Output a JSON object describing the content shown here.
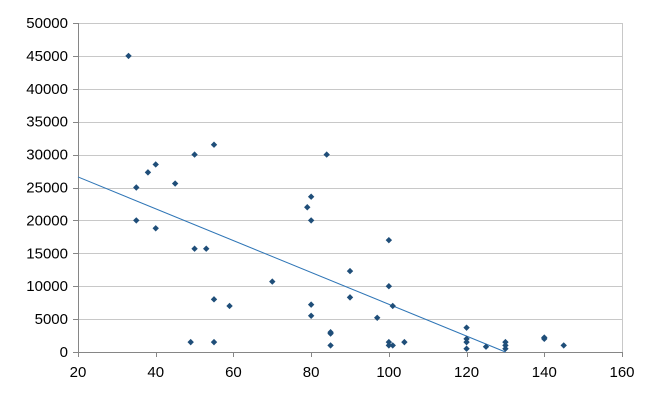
{
  "chart_data": {
    "type": "scatter",
    "title": "",
    "xlabel": "",
    "ylabel": "",
    "xlim": [
      20,
      160
    ],
    "ylim": [
      0,
      50000
    ],
    "x_ticks": [
      20,
      40,
      60,
      80,
      100,
      120,
      140,
      160
    ],
    "y_ticks": [
      0,
      5000,
      10000,
      15000,
      20000,
      25000,
      30000,
      35000,
      40000,
      45000,
      50000
    ],
    "grid": "horizontal",
    "legend": "none",
    "colors": {
      "points": "#1f4e79",
      "trendline": "#2e75b6",
      "grid": "#c8c8c8",
      "axis": "#868686"
    },
    "series": [
      {
        "points": [
          [
            33,
            45000
          ],
          [
            35,
            25000
          ],
          [
            35,
            20000
          ],
          [
            38,
            27300
          ],
          [
            40,
            28500
          ],
          [
            40,
            18800
          ],
          [
            45,
            25600
          ],
          [
            49,
            1500
          ],
          [
            50,
            30000
          ],
          [
            50,
            15700
          ],
          [
            53,
            15700
          ],
          [
            55,
            31500
          ],
          [
            55,
            8000
          ],
          [
            55,
            1500
          ],
          [
            59,
            7000
          ],
          [
            70,
            10700
          ],
          [
            79,
            22000
          ],
          [
            80,
            23600
          ],
          [
            80,
            20000
          ],
          [
            80,
            7200
          ],
          [
            80,
            5500
          ],
          [
            84,
            30000
          ],
          [
            85,
            3000
          ],
          [
            85,
            2800
          ],
          [
            85,
            1000
          ],
          [
            90,
            12300
          ],
          [
            90,
            8300
          ],
          [
            97,
            5200
          ],
          [
            100,
            17000
          ],
          [
            100,
            10000
          ],
          [
            100,
            1500
          ],
          [
            100,
            1000
          ],
          [
            101,
            7000
          ],
          [
            101,
            1000
          ],
          [
            104,
            1500
          ],
          [
            120,
            3700
          ],
          [
            120,
            2000
          ],
          [
            120,
            1500
          ],
          [
            120,
            500
          ],
          [
            125,
            800
          ],
          [
            130,
            1500
          ],
          [
            130,
            1000
          ],
          [
            130,
            500
          ],
          [
            140,
            2200
          ],
          [
            140,
            2000
          ],
          [
            145,
            1000
          ]
        ]
      }
    ],
    "trendline": {
      "type": "linear",
      "from": [
        20,
        26600
      ],
      "to": [
        130,
        0
      ]
    }
  }
}
